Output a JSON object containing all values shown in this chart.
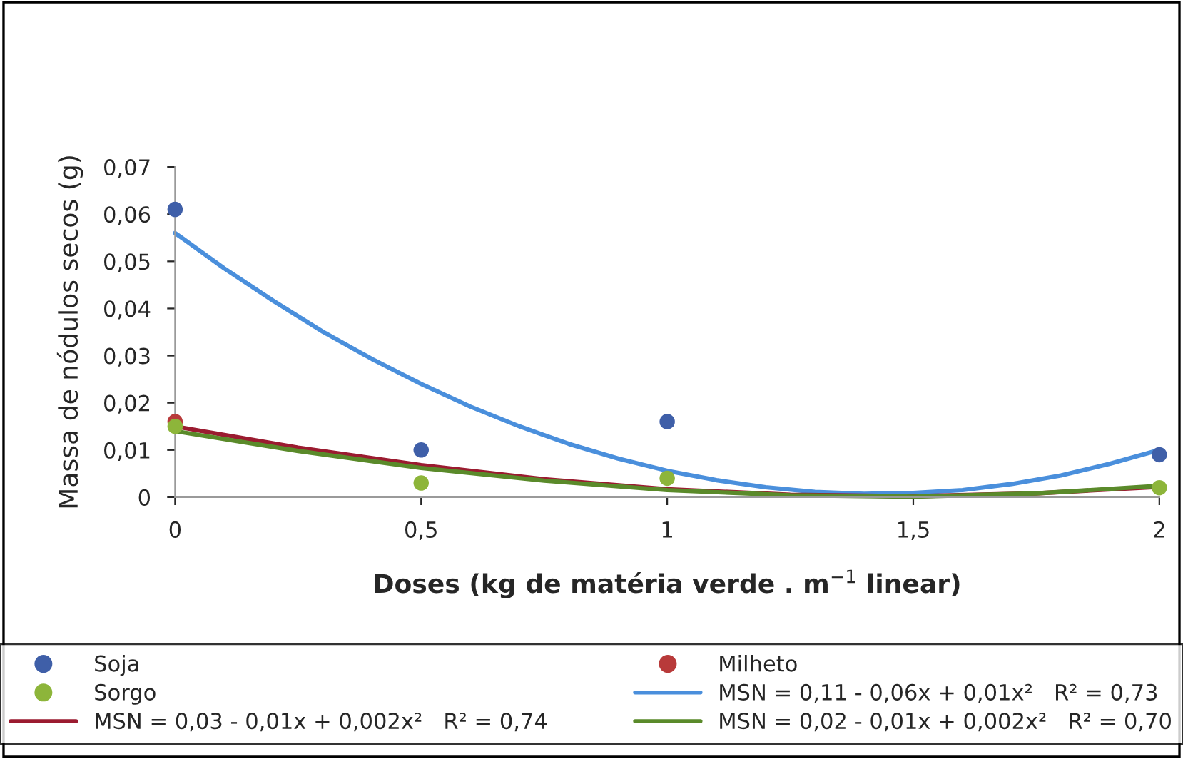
{
  "chart_data": {
    "type": "scatter",
    "xlabel": "Doses (kg de matéria verde . m$^{−1}$ linear)",
    "ylabel": "Massa de nódulos secos (g)",
    "xlim": [
      0,
      2
    ],
    "xticks": [
      0,
      {
        "value": 0.5,
        "label": "0,5"
      },
      1,
      {
        "value": 1.5,
        "label": "1,5"
      },
      2
    ],
    "ylim": [
      0,
      0.07
    ],
    "yticks": [
      0,
      {
        "value": 0.01,
        "label": "0,01"
      },
      {
        "value": 0.02,
        "label": "0,02"
      },
      {
        "value": 0.03,
        "label": "0,03"
      },
      {
        "value": 0.04,
        "label": "0,04"
      },
      {
        "value": 0.05,
        "label": "0,05"
      },
      {
        "value": 0.06,
        "label": "0,06"
      },
      {
        "value": 0.07,
        "label": "0,07"
      }
    ],
    "grid": false,
    "legend": "bottom",
    "marker": "circle",
    "series": [
      {
        "name": "Soja",
        "color": "#3f5fa8",
        "x": [
          0,
          0.5,
          1,
          2
        ],
        "values": [
          0.061,
          0.01,
          0.016,
          0.009
        ]
      },
      {
        "name": "Milheto",
        "color": "#b83a3a",
        "x": [
          0
        ],
        "values": [
          0.016
        ]
      },
      {
        "name": "Sorgo",
        "color": "#8db53a",
        "x": [
          0,
          0.5,
          1,
          2
        ],
        "values": [
          0.015,
          0.003,
          0.004,
          0.002
        ]
      },
      {
        "name": "MSN = 0,11 - 0,06x + 0,01x²   R² = 0,73",
        "type": "line",
        "marker": "none",
        "color": "#4a8fdc",
        "x": [
          0,
          0.1,
          0.2,
          0.3,
          0.4,
          0.5,
          0.6,
          0.7,
          0.8,
          0.9,
          1.0,
          1.1,
          1.2,
          1.3,
          1.4,
          1.5,
          1.6,
          1.7,
          1.8,
          1.9,
          2.0
        ],
        "values": [
          0.056,
          0.0485,
          0.0416,
          0.0351,
          0.0293,
          0.024,
          0.0192,
          0.015,
          0.0113,
          0.0082,
          0.0056,
          0.0036,
          0.0021,
          0.0011,
          0.0007,
          0.0009,
          0.0015,
          0.0028,
          0.0046,
          0.0071,
          0.01
        ]
      },
      {
        "name": "MSN = 0,03 - 0,01x + 0,002x²   R² = 0,74",
        "type": "line",
        "marker": "none",
        "color": "#9b1b30",
        "x": [
          0,
          0.25,
          0.5,
          0.75,
          1,
          1.25,
          1.5,
          1.75,
          2
        ],
        "values": [
          0.015,
          0.0105,
          0.0068,
          0.0038,
          0.0017,
          0.0005,
          0.0002,
          0.0008,
          0.0022
        ]
      },
      {
        "name": "MSN = 0,02 - 0,01x + 0,002x²   R² = 0,70",
        "type": "line",
        "marker": "none",
        "color": "#5a8a2a",
        "x": [
          0,
          0.25,
          0.5,
          0.75,
          1,
          1.25,
          1.5,
          1.75,
          2
        ],
        "values": [
          0.014,
          0.0098,
          0.0062,
          0.0035,
          0.0015,
          0.0004,
          0.0001,
          0.0008,
          0.0024
        ]
      }
    ]
  }
}
